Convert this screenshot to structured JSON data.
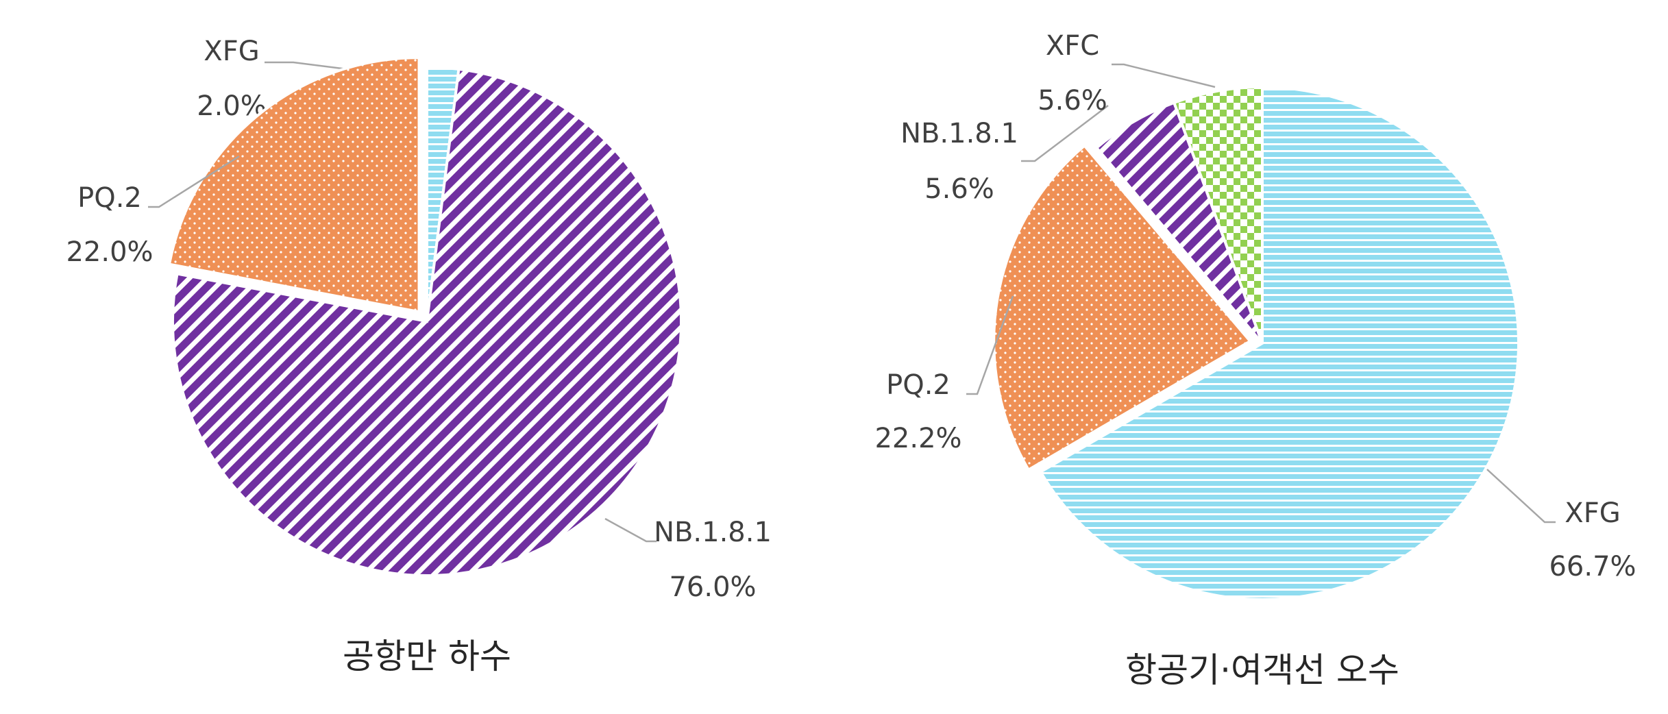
{
  "chart_data": [
    {
      "type": "pie",
      "title": "공항만 하수",
      "slices": [
        {
          "label": "XFG",
          "value": 2.0,
          "display": "2.0%",
          "color": "#8fdcf0",
          "pattern": "horizontal-stripes"
        },
        {
          "label": "NB.1.8.1",
          "value": 76.0,
          "display": "76.0%",
          "color": "#7030a0",
          "pattern": "diagonal-stripes"
        },
        {
          "label": "PQ.2",
          "value": 22.0,
          "display": "22.0%",
          "color": "#ef9055",
          "pattern": "dots"
        }
      ],
      "exploded": "PQ.2"
    },
    {
      "type": "pie",
      "title": "항공기·여객선 오수",
      "slices": [
        {
          "label": "XFG",
          "value": 66.7,
          "display": "66.7%",
          "color": "#8fdcf0",
          "pattern": "horizontal-stripes"
        },
        {
          "label": "PQ.2",
          "value": 22.2,
          "display": "22.2%",
          "color": "#ef9055",
          "pattern": "dots"
        },
        {
          "label": "NB.1.8.1",
          "value": 5.6,
          "display": "5.6%",
          "color": "#7030a0",
          "pattern": "diagonal-stripes"
        },
        {
          "label": "XFC",
          "value": 5.6,
          "display": "5.6%",
          "color": "#92d050",
          "pattern": "checkerboard"
        }
      ],
      "exploded": "PQ.2"
    }
  ]
}
